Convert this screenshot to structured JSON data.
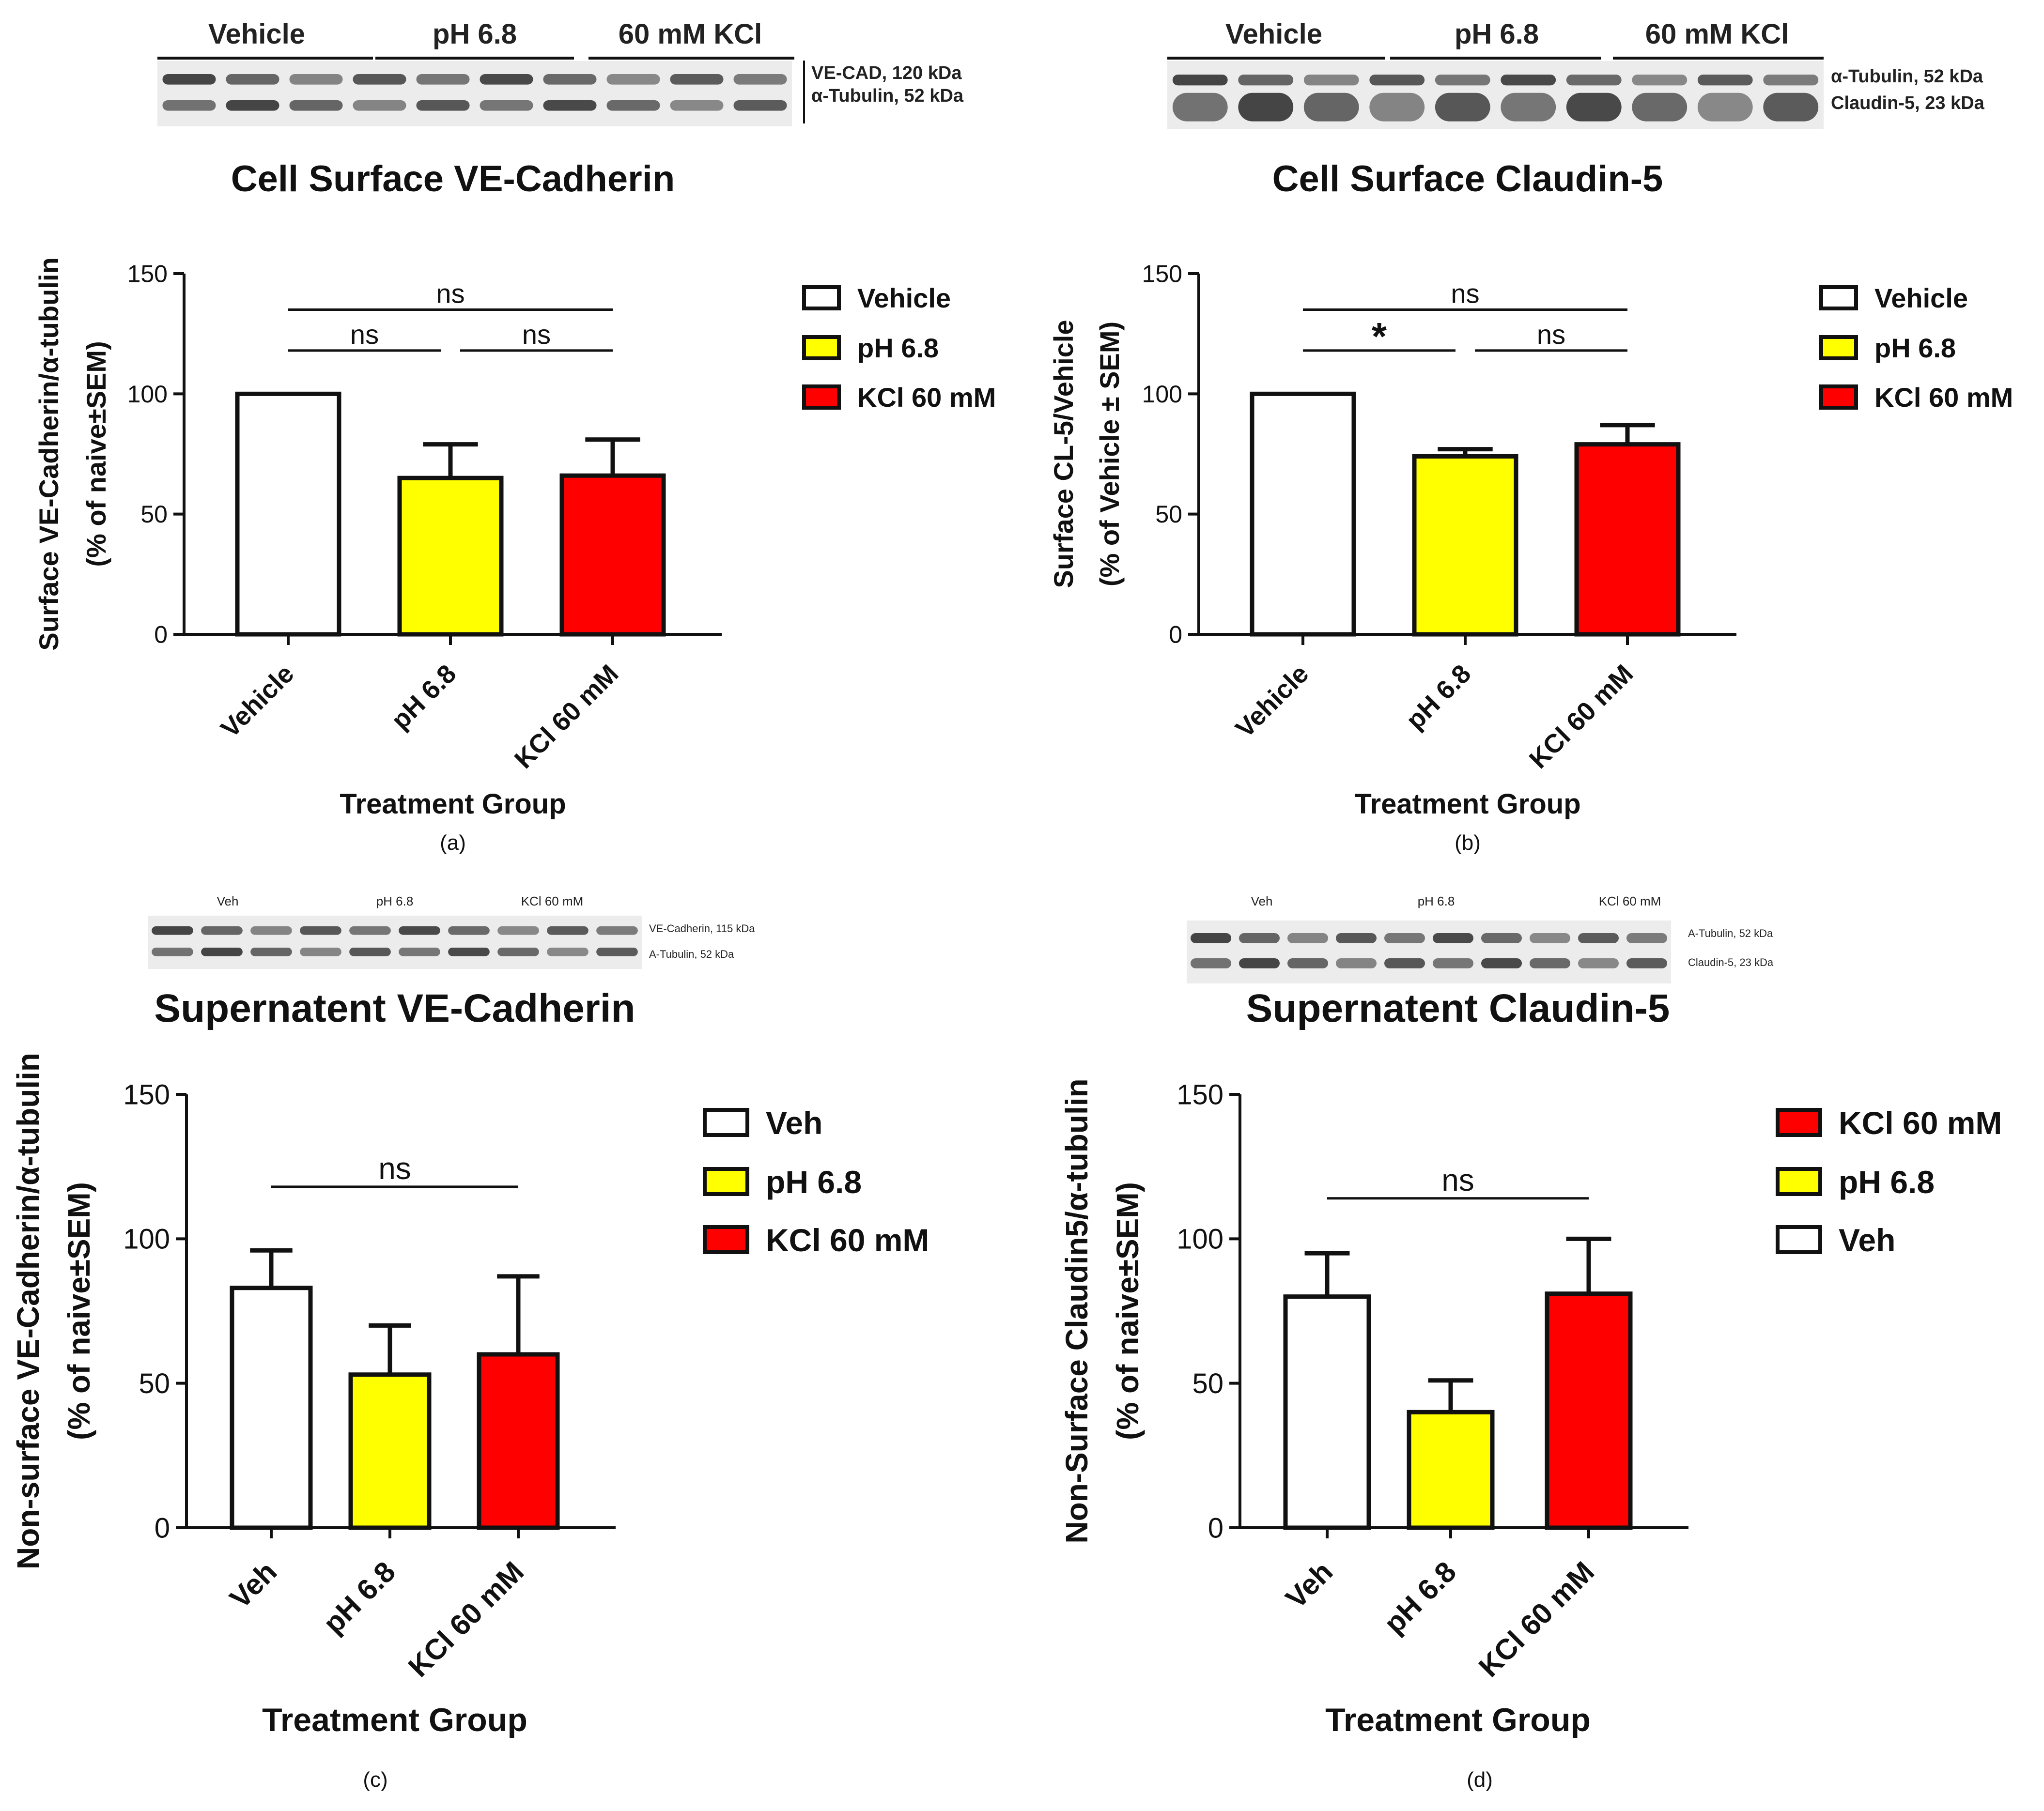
{
  "panels": [
    {
      "id": "a",
      "label": "(a)",
      "blot": {
        "groups": [
          "Vehicle",
          "pH 6.8",
          "60 mM KCl"
        ],
        "bands": [
          "VE-CAD, 120 kDa",
          "α-Tubulin, 52 kDa"
        ],
        "style": "bold"
      }
    },
    {
      "id": "b",
      "label": "(b)",
      "blot": {
        "groups": [
          "Vehicle",
          "pH 6.8",
          "60 mM KCl"
        ],
        "bands": [
          "α-Tubulin, 52 kDa",
          "Claudin-5, 23 kDa"
        ],
        "style": "bold"
      }
    },
    {
      "id": "c",
      "label": "(c)",
      "blot": {
        "groups": [
          "Veh",
          "pH 6.8",
          "KCl 60 mM"
        ],
        "bands": [
          "VE-Cadherin, 115 kDa",
          "A-Tubulin, 52 kDa"
        ],
        "style": "small"
      }
    },
    {
      "id": "d",
      "label": "(d)",
      "blot": {
        "groups": [
          "Veh",
          "pH 6.8",
          "KCl 60 mM"
        ],
        "bands": [
          "A-Tubulin, 52 kDa",
          "Claudin-5, 23 kDa"
        ],
        "style": "small"
      }
    }
  ],
  "chart_data": [
    {
      "type": "bar",
      "title": "Cell Surface VE-Cadherin",
      "ylabel": [
        "Surface VE-Cadherin/α-tubulin",
        "(% of naive±SEM)"
      ],
      "xlabel": "Treatment Group",
      "categories": [
        "Vehicle",
        "pH 6.8",
        "KCl 60 mM"
      ],
      "values": [
        100,
        65,
        66
      ],
      "errors": [
        0,
        14,
        15
      ],
      "colors": [
        "#ffffff",
        "#ffff00",
        "#ff0000"
      ],
      "ylim": [
        0,
        150
      ],
      "yticks": [
        0,
        50,
        100,
        150
      ],
      "legend": [
        {
          "label": "Vehicle",
          "color": "#ffffff"
        },
        {
          "label": "pH 6.8",
          "color": "#ffff00"
        },
        {
          "label": "KCl 60 mM",
          "color": "#ff0000"
        }
      ],
      "significance": [
        {
          "from": 0,
          "to": 2,
          "label": "ns",
          "level": 135
        },
        {
          "from": 0,
          "to": 1,
          "label": "ns",
          "level": 118
        },
        {
          "from": 1,
          "to": 2,
          "label": "ns",
          "level": 118
        }
      ]
    },
    {
      "type": "bar",
      "title": "Cell Surface Claudin-5",
      "ylabel": [
        "Surface CL-5/Vehicle",
        "(% of Vehicle ± SEM)"
      ],
      "xlabel": "Treatment Group",
      "categories": [
        "Vehicle",
        "pH 6.8",
        "KCl 60 mM"
      ],
      "values": [
        100,
        74,
        79
      ],
      "errors": [
        0,
        3,
        8
      ],
      "colors": [
        "#ffffff",
        "#ffff00",
        "#ff0000"
      ],
      "ylim": [
        0,
        150
      ],
      "yticks": [
        0,
        50,
        100,
        150
      ],
      "legend": [
        {
          "label": "Vehicle",
          "color": "#ffffff"
        },
        {
          "label": "pH 6.8",
          "color": "#ffff00"
        },
        {
          "label": "KCl 60 mM",
          "color": "#ff0000"
        }
      ],
      "significance": [
        {
          "from": 0,
          "to": 2,
          "label": "ns",
          "level": 135
        },
        {
          "from": 0,
          "to": 1,
          "label": "*",
          "level": 118
        },
        {
          "from": 1,
          "to": 2,
          "label": "ns",
          "level": 118
        }
      ]
    },
    {
      "type": "bar",
      "title": "Supernatent VE-Cadherin",
      "ylabel": [
        "Non-surface VE-Cadherin/α-tubulin",
        "(% of naive±SEM)"
      ],
      "xlabel": "Treatment Group",
      "categories": [
        "Veh",
        "pH 6.8",
        "KCl 60 mM"
      ],
      "values": [
        83,
        53,
        60
      ],
      "errors": [
        13,
        17,
        27
      ],
      "colors": [
        "#ffffff",
        "#ffff00",
        "#ff0000"
      ],
      "ylim": [
        0,
        150
      ],
      "yticks": [
        0,
        50,
        100,
        150
      ],
      "legend": [
        {
          "label": "Veh",
          "color": "#ffffff"
        },
        {
          "label": "pH 6.8",
          "color": "#ffff00"
        },
        {
          "label": "KCl 60 mM",
          "color": "#ff0000"
        }
      ],
      "significance": [
        {
          "from": 0,
          "to": 2,
          "label": "ns",
          "level": 118
        }
      ]
    },
    {
      "type": "bar",
      "title": "Supernatent Claudin-5",
      "ylabel": [
        "Non-Surface Claudin5/α-tubulin",
        "(% of naive±SEM)"
      ],
      "xlabel": "Treatment Group",
      "categories": [
        "Veh",
        "pH 6.8",
        "KCl 60 mM"
      ],
      "values": [
        80,
        40,
        81
      ],
      "errors": [
        15,
        11,
        19
      ],
      "colors": [
        "#ffffff",
        "#ffff00",
        "#ff0000"
      ],
      "ylim": [
        0,
        150
      ],
      "yticks": [
        0,
        50,
        100,
        150
      ],
      "legend": [
        {
          "label": "KCl 60 mM",
          "color": "#ff0000"
        },
        {
          "label": "pH 6.8",
          "color": "#ffff00"
        },
        {
          "label": "Veh",
          "color": "#ffffff"
        }
      ],
      "significance": [
        {
          "from": 0,
          "to": 2,
          "label": "ns",
          "level": 114
        }
      ]
    }
  ]
}
